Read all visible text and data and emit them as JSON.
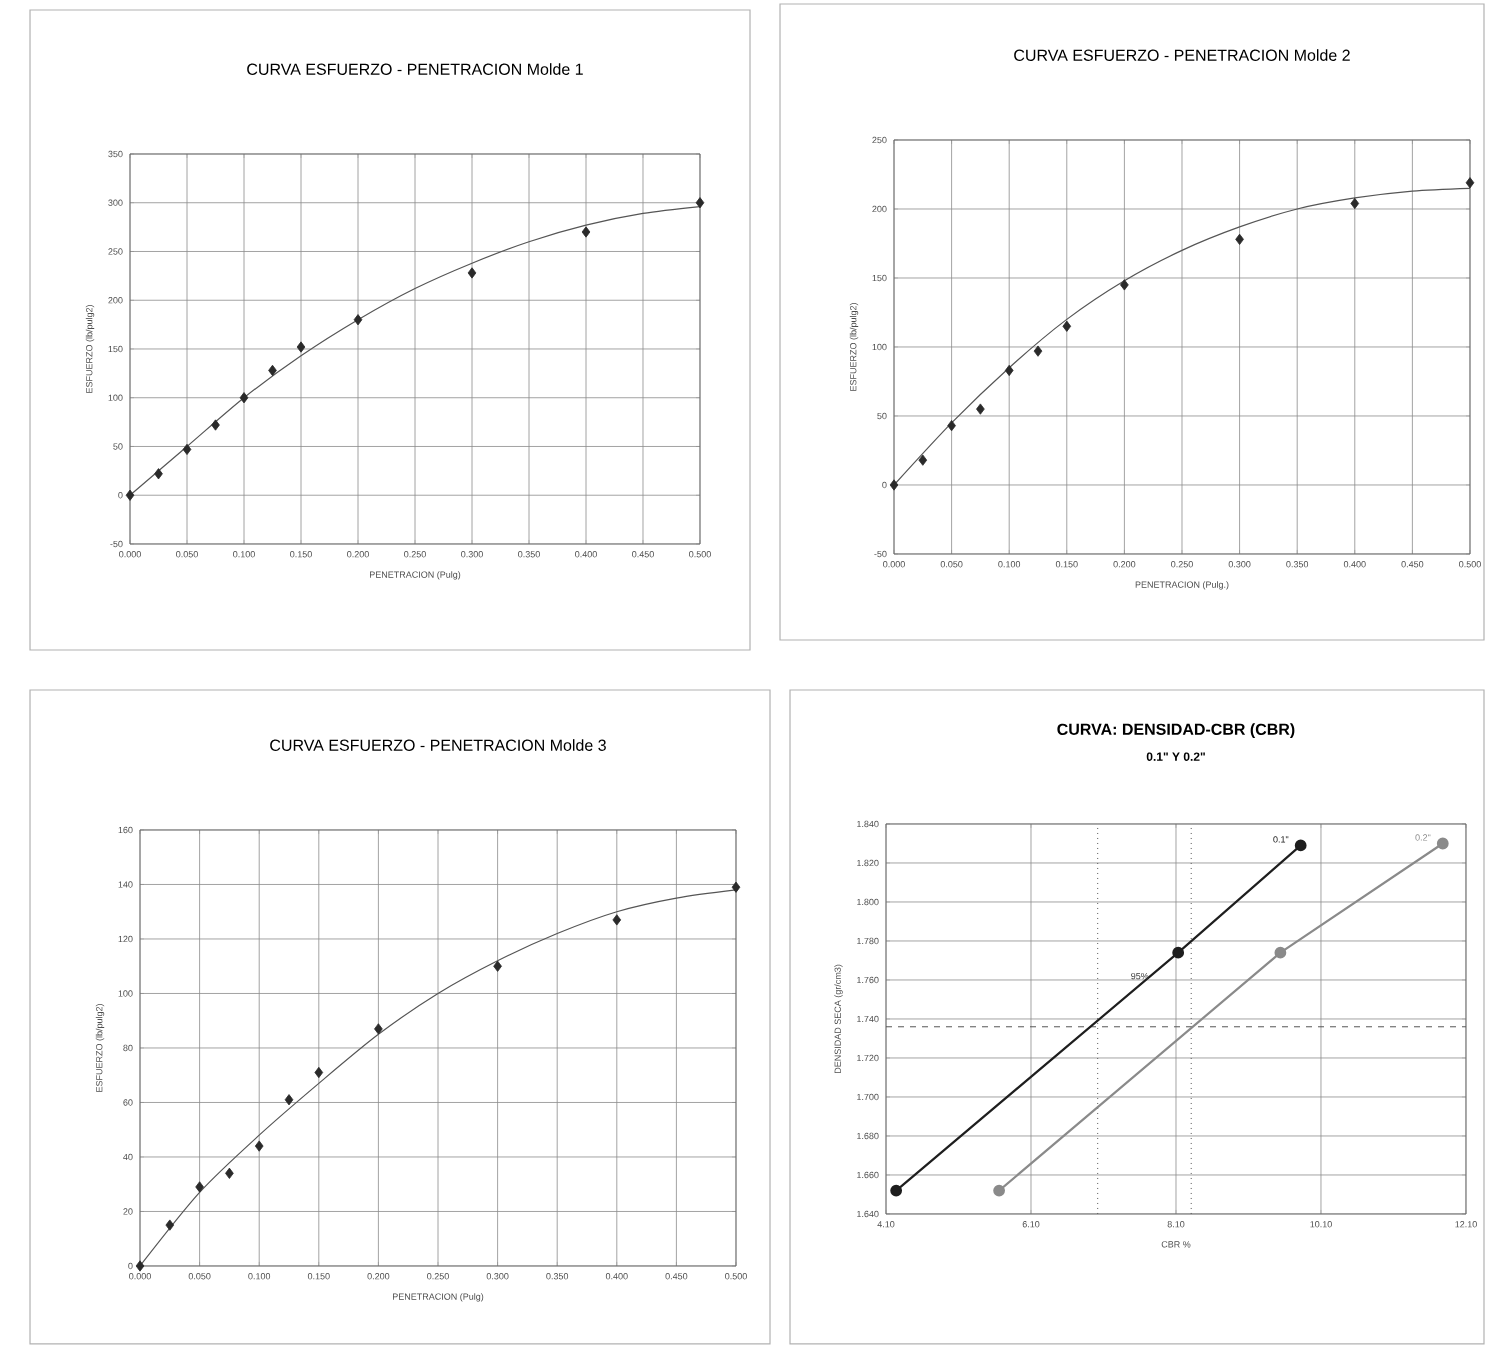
{
  "chart_data": [
    {
      "type": "scatter",
      "title": "CURVA ESFUERZO - PENETRACION  Molde 1",
      "xlabel": "PENETRACION (Pulg)",
      "ylabel": "ESFUERZO (lb/pulg2)",
      "marker": "diamond",
      "grid": true,
      "xlim": [
        0,
        0.5
      ],
      "ylim": [
        -50,
        350
      ],
      "xticks": [
        {
          "value": 0,
          "label": "0.000"
        },
        {
          "value": 0.05,
          "label": "0.050"
        },
        {
          "value": 0.1,
          "label": "0.100"
        },
        {
          "value": 0.15,
          "label": "0.150"
        },
        {
          "value": 0.2,
          "label": "0.200"
        },
        {
          "value": 0.25,
          "label": "0.250"
        },
        {
          "value": 0.3,
          "label": "0.300"
        },
        {
          "value": 0.35,
          "label": "0.350"
        },
        {
          "value": 0.4,
          "label": "0.400"
        },
        {
          "value": 0.45,
          "label": "0.450"
        },
        {
          "value": 0.5,
          "label": "0.500"
        }
      ],
      "yticks": [
        -50,
        0,
        50,
        100,
        150,
        200,
        250,
        300,
        350
      ],
      "series": [
        {
          "color": "#2a2a2a",
          "x": [
            0,
            0.025,
            0.05,
            0.075,
            0.1,
            0.125,
            0.15,
            0.2,
            0.3,
            0.4,
            0.5
          ],
          "values": [
            0,
            22,
            47,
            72,
            100,
            128,
            152,
            180,
            228,
            270,
            300
          ]
        },
        {
          "type": "line",
          "marker": "none",
          "color": "#555555",
          "x": [
            0,
            0.05,
            0.1,
            0.15,
            0.2,
            0.25,
            0.3,
            0.35,
            0.4,
            0.45,
            0.5
          ],
          "values": [
            0,
            50,
            100,
            143,
            180,
            212,
            238,
            260,
            277,
            289,
            296
          ]
        }
      ]
    },
    {
      "type": "scatter",
      "title": "CURVA ESFUERZO - PENETRACION  Molde 2",
      "xlabel": "PENETRACION (Pulg.)",
      "ylabel": "ESFUERZO (lb/pulg2)",
      "marker": "diamond",
      "grid": true,
      "xlim": [
        0,
        0.5
      ],
      "ylim": [
        -50,
        250
      ],
      "xticks": [
        {
          "value": 0,
          "label": "0.000"
        },
        {
          "value": 0.05,
          "label": "0.050"
        },
        {
          "value": 0.1,
          "label": "0.100"
        },
        {
          "value": 0.15,
          "label": "0.150"
        },
        {
          "value": 0.2,
          "label": "0.200"
        },
        {
          "value": 0.25,
          "label": "0.250"
        },
        {
          "value": 0.3,
          "label": "0.300"
        },
        {
          "value": 0.35,
          "label": "0.350"
        },
        {
          "value": 0.4,
          "label": "0.400"
        },
        {
          "value": 0.45,
          "label": "0.450"
        },
        {
          "value": 0.5,
          "label": "0.500"
        }
      ],
      "yticks": [
        -50,
        0,
        50,
        100,
        150,
        200,
        250
      ],
      "series": [
        {
          "color": "#2a2a2a",
          "x": [
            0,
            0.025,
            0.05,
            0.075,
            0.1,
            0.125,
            0.15,
            0.2,
            0.3,
            0.4,
            0.5
          ],
          "values": [
            0,
            18,
            43,
            55,
            83,
            97,
            115,
            145,
            178,
            204,
            219
          ]
        },
        {
          "type": "line",
          "marker": "none",
          "color": "#555555",
          "x": [
            0,
            0.05,
            0.1,
            0.15,
            0.2,
            0.25,
            0.3,
            0.35,
            0.4,
            0.45,
            0.5
          ],
          "values": [
            0,
            45,
            85,
            120,
            148,
            170,
            187,
            200,
            208,
            213,
            215
          ]
        }
      ]
    },
    {
      "type": "scatter",
      "title": "CURVA ESFUERZO - PENETRACION  Molde 3",
      "xlabel": "PENETRACION (Pulg)",
      "ylabel": "ESFUERZO (lb/pulg2)",
      "marker": "diamond",
      "grid": true,
      "xlim": [
        0,
        0.5
      ],
      "ylim": [
        0,
        160
      ],
      "xticks": [
        {
          "value": 0,
          "label": "0.000"
        },
        {
          "value": 0.05,
          "label": "0.050"
        },
        {
          "value": 0.1,
          "label": "0.100"
        },
        {
          "value": 0.15,
          "label": "0.150"
        },
        {
          "value": 0.2,
          "label": "0.200"
        },
        {
          "value": 0.25,
          "label": "0.250"
        },
        {
          "value": 0.3,
          "label": "0.300"
        },
        {
          "value": 0.35,
          "label": "0.350"
        },
        {
          "value": 0.4,
          "label": "0.400"
        },
        {
          "value": 0.45,
          "label": "0.450"
        },
        {
          "value": 0.5,
          "label": "0.500"
        }
      ],
      "yticks": [
        0,
        20,
        40,
        60,
        80,
        100,
        120,
        140,
        160
      ],
      "series": [
        {
          "color": "#2a2a2a",
          "x": [
            0,
            0.025,
            0.05,
            0.075,
            0.1,
            0.125,
            0.15,
            0.2,
            0.3,
            0.4,
            0.5
          ],
          "values": [
            0,
            15,
            29,
            34,
            44,
            61,
            71,
            87,
            110,
            127,
            139
          ]
        },
        {
          "type": "line",
          "marker": "none",
          "color": "#555555",
          "x": [
            0,
            0.05,
            0.1,
            0.15,
            0.2,
            0.25,
            0.3,
            0.35,
            0.4,
            0.45,
            0.5
          ],
          "values": [
            0,
            27,
            48,
            67,
            85,
            100,
            112,
            122,
            130,
            135,
            138
          ]
        }
      ]
    },
    {
      "type": "line",
      "title": "CURVA:  DENSIDAD-CBR (CBR)",
      "subtitle": "0.1\"  Y  0.2\"",
      "xlabel": "CBR %",
      "ylabel": "DENSIDAD SECA (gr/cm3)",
      "marker": "circle",
      "grid": true,
      "xlim": [
        4.1,
        12.1
      ],
      "ylim": [
        1.64,
        1.84
      ],
      "xticks": [
        {
          "value": 4.1,
          "label": "4.10"
        },
        {
          "value": 6.1,
          "label": "6.10"
        },
        {
          "value": 8.1,
          "label": "8.10"
        },
        {
          "value": 10.1,
          "label": "10.10"
        },
        {
          "value": 12.1,
          "label": "12.10"
        }
      ],
      "yticks": [
        {
          "value": 1.64,
          "label": "1.640"
        },
        {
          "value": 1.66,
          "label": "1.660"
        },
        {
          "value": 1.68,
          "label": "1.680"
        },
        {
          "value": 1.7,
          "label": "1.700"
        },
        {
          "value": 1.72,
          "label": "1.720"
        },
        {
          "value": 1.74,
          "label": "1.740"
        },
        {
          "value": 1.76,
          "label": "1.760"
        },
        {
          "value": 1.78,
          "label": "1.780"
        },
        {
          "value": 1.8,
          "label": "1.800"
        },
        {
          "value": 1.82,
          "label": "1.820"
        },
        {
          "value": 1.84,
          "label": "1.840"
        }
      ],
      "series": [
        {
          "name": "0.1\"",
          "color": "#1e1e1e",
          "x": [
            4.24,
            8.13,
            9.82
          ],
          "values": [
            1.652,
            1.774,
            1.829
          ]
        },
        {
          "name": "0.2\"",
          "color": "#8a8a8a",
          "x": [
            5.66,
            9.54,
            11.78
          ],
          "values": [
            1.652,
            1.774,
            1.83
          ]
        }
      ],
      "ref_lines": [
        {
          "axis": "y",
          "value": 1.736,
          "line_style": "dashed",
          "color": "#555555"
        },
        {
          "axis": "x",
          "value": 7.02,
          "line_style": "dotted",
          "color": "#555555"
        },
        {
          "axis": "x",
          "value": 8.31,
          "line_style": "dotted",
          "color": "#555555"
        }
      ],
      "annotations": [
        {
          "text": "95%",
          "x": 7.6,
          "y": 1.762
        }
      ]
    }
  ]
}
